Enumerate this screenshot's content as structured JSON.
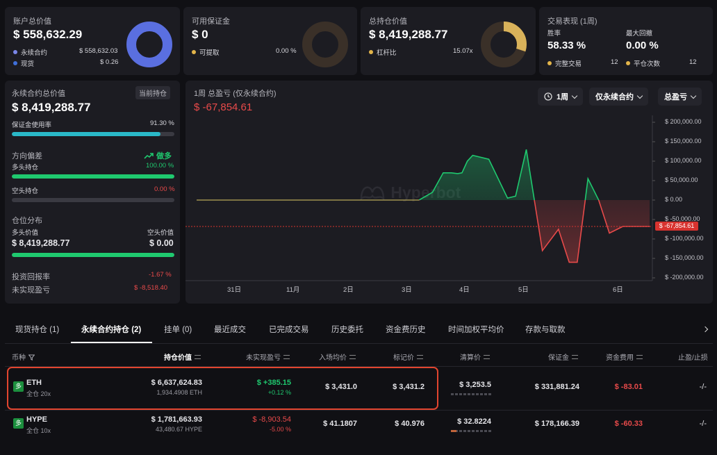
{
  "cards": {
    "account": {
      "title": "账户总价值",
      "value": "$ 558,632.29",
      "rows": [
        {
          "label": "永续合约",
          "value": "$ 558,632.03",
          "color": "#7a86e8"
        },
        {
          "label": "现货",
          "value": "$ 0.26",
          "color": "#3f6fd9"
        }
      ],
      "ring_color": "#5a6fe0",
      "ring_pct": 100
    },
    "margin": {
      "title": "可用保证金",
      "value": "$ 0",
      "rows": [
        {
          "label": "可提取",
          "value": "0.00 %",
          "color": "#e3b54a"
        }
      ],
      "ring_color": "#3a3028",
      "ring_pct": 0
    },
    "position": {
      "title": "总持仓价值",
      "value": "$ 8,419,288.77",
      "rows": [
        {
          "label": "杠杆比",
          "value": "15.07x",
          "color": "#e3b54a"
        }
      ],
      "ring_color": "#d9b25a",
      "ring_pct": 30
    },
    "performance": {
      "title": "交易表现 (1周)",
      "winrate_label": "胜率",
      "winrate": "58.33 %",
      "drawdown_label": "最大回撤",
      "drawdown": "0.00 %",
      "completed_label": "完整交易",
      "completed": "12",
      "closes_label": "平仓次数",
      "closes": "12"
    }
  },
  "perp": {
    "title": "永续合约总价值",
    "badge": "当前持仓",
    "value": "$ 8,419,288.77",
    "margin_usage_label": "保证金使用率",
    "margin_usage": "91.30 %",
    "margin_usage_pct": 91.3,
    "bias_label": "方向偏差",
    "bias_value": "做多",
    "long_label": "多头持仓",
    "long_pct_text": "100.00 %",
    "long_pct": 100,
    "short_label": "空头持仓",
    "short_pct_text": "0.00 %",
    "short_pct": 0,
    "dist_label": "仓位分布",
    "long_value_label": "多头价值",
    "short_value_label": "空头价值",
    "long_value": "$ 8,419,288.77",
    "short_value": "$ 0.00",
    "roi_label": "投资回报率",
    "roi": "-1.67 %",
    "upnl_label": "未实现盈亏",
    "upnl": "$ -8,518.40"
  },
  "pnl_chart": {
    "title": "1周 总盈亏 (仅永续合约)",
    "value": "$ -67,854.61",
    "btn_period": "1周",
    "btn_scope": "仅永续合约",
    "btn_metric": "总盈亏",
    "watermark": "Hyperbot",
    "current_label": "$ -67,854.61"
  },
  "chart_data": {
    "type": "line",
    "title": "1周 总盈亏 (仅永续合约)",
    "x_ticks": [
      "31日",
      "11月",
      "2日",
      "3日",
      "4日",
      "5日",
      "6日"
    ],
    "y_ticks": [
      "$ 200,000.00",
      "$ 150,000.00",
      "$ 100,000.00",
      "$ 50,000.00",
      "$ 0.00",
      "$ -50,000.00",
      "$ -100,000.00",
      "$ -150,000.00",
      "$ -200,000.00"
    ],
    "ylim": [
      -200000,
      200000
    ],
    "x": [
      0,
      1,
      2,
      3,
      4,
      4.15,
      4.4,
      4.6,
      4.75,
      4.87,
      4.95,
      5.05,
      5.15,
      5.45,
      5.8,
      5.95,
      6.15,
      6.45,
      6.75,
      6.95,
      7.1,
      7.3,
      7.5,
      7.7,
      7.95,
      8.15,
      8.3,
      8.45
    ],
    "values": [
      0,
      0,
      0,
      0,
      0,
      0,
      20000,
      70000,
      70000,
      68000,
      70000,
      100000,
      115000,
      105000,
      5000,
      10000,
      130000,
      -130000,
      -75000,
      -160000,
      -160000,
      55000,
      0,
      -85000,
      -67854.61,
      -67854.61,
      -67854.61,
      -67854.61
    ],
    "current": -67854.61,
    "grid": false
  },
  "tabs": [
    {
      "label": "现货持仓 (1)",
      "active": false
    },
    {
      "label": "永续合约持仓 (2)",
      "active": true
    },
    {
      "label": "挂单 (0)",
      "active": false
    },
    {
      "label": "最近成交",
      "active": false
    },
    {
      "label": "已完成交易",
      "active": false
    },
    {
      "label": "历史委托",
      "active": false
    },
    {
      "label": "资金费历史",
      "active": false
    },
    {
      "label": "时间加权平均价",
      "active": false
    },
    {
      "label": "存款与取款",
      "active": false
    }
  ],
  "table": {
    "headers": {
      "coin": "币种",
      "value": "持仓价值",
      "upnl": "未实现盈亏",
      "entry": "入场均价",
      "mark": "标记价",
      "liq": "清算价",
      "margin": "保证金",
      "funding": "资金费用",
      "tpsl": "止盈/止损"
    },
    "rows": [
      {
        "side": "多",
        "coin": "ETH",
        "mode": "全仓 20x",
        "value": "$ 6,637,624.83",
        "size": "1,934.4908 ETH",
        "upnl": "$ +385.15",
        "upnl_pct": "+0.12 %",
        "upnl_positive": true,
        "entry": "$ 3,431.0",
        "mark": "$ 3,431.2",
        "liq": "$ 3,253.5",
        "margin": "$ 331,881.24",
        "funding": "$ -83.01",
        "tpsl": "-/-"
      },
      {
        "side": "多",
        "coin": "HYPE",
        "mode": "全仓 10x",
        "value": "$ 1,781,663.93",
        "size": "43,480.67 HYPE",
        "upnl": "$ -8,903.54",
        "upnl_pct": "-5.00 %",
        "upnl_positive": false,
        "entry": "$ 41.1807",
        "mark": "$ 40.976",
        "liq": "$ 32.8224",
        "margin": "$ 178,166.39",
        "funding": "$ -60.33",
        "tpsl": "-/-"
      }
    ]
  }
}
